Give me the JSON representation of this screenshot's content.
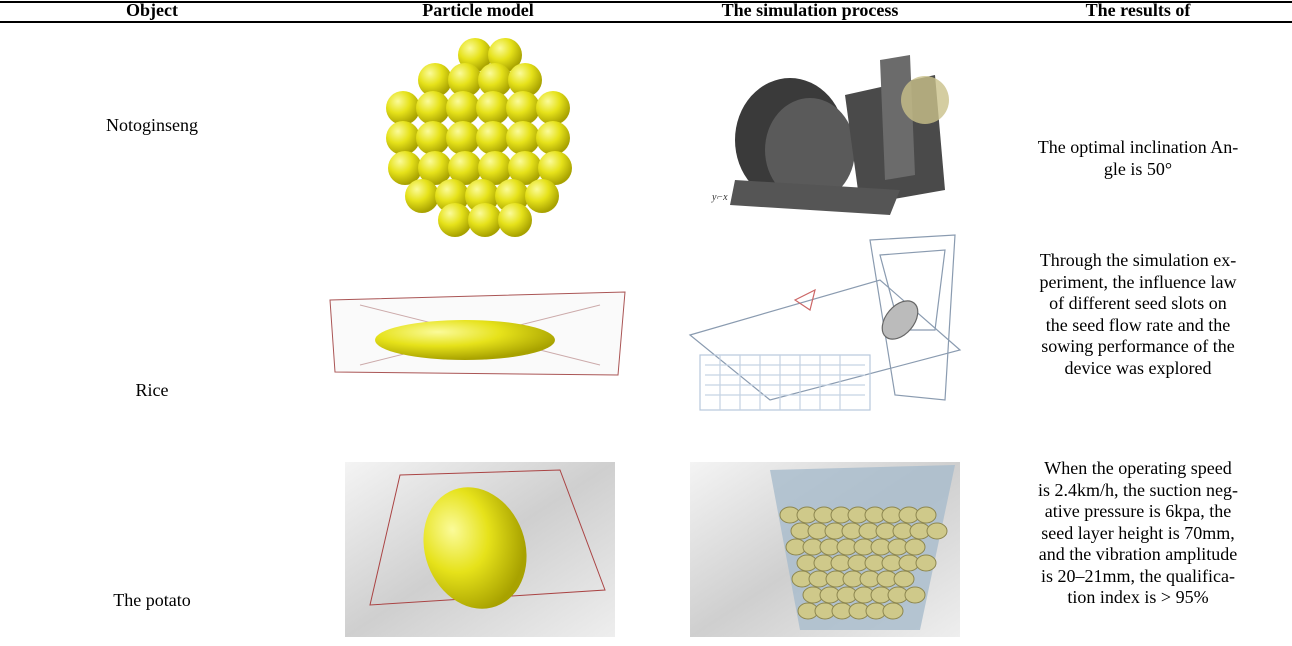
{
  "table": {
    "header": [
      "Object",
      "Particle model",
      "The simulation process",
      "The results of"
    ],
    "rows": [
      {
        "object": "Notoginseng",
        "result": [
          "The optimal inclination An-",
          "gle is 50°"
        ]
      },
      {
        "object": "Rice",
        "result": [
          "Through the simulation ex-",
          "periment, the influence law",
          "of different seed slots on",
          "the seed flow rate and the",
          "sowing performance of the",
          "device was explored"
        ]
      },
      {
        "object": "The potato",
        "result": [
          "When the operating speed",
          "is 2.4km/h, the suction neg-",
          "ative pressure is 6kpa, the",
          "seed layer height is 70mm,",
          "and the vibration amplitude",
          "is 20–21mm, the qualifica-",
          "tion index is > 95%"
        ]
      }
    ]
  }
}
